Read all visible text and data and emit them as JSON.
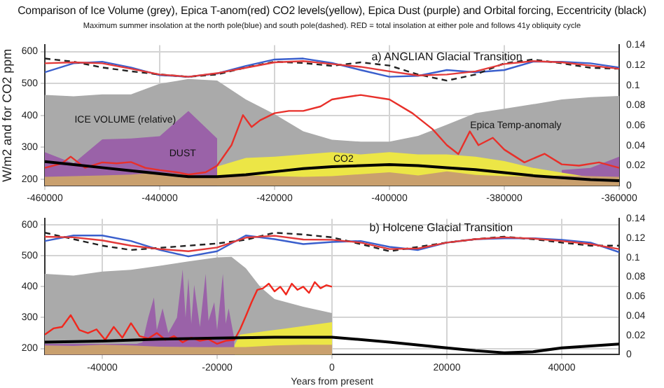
{
  "chart_data": [
    {
      "type": "line",
      "title": "Comparison of Ice Volume (grey), Epica T-anom(red) CO2 levels(yellow), Epica Dust (purple) and Orbital forcing, Eccentricity (black)",
      "subtitle": "Maximum summer insolation at the north pole(blue) and south pole(dashed). RED = total insolation at either pole and follows 41y obliquity cycle",
      "ylabel": "W/m2 and for CO2 ppm",
      "annotations": [
        "a) ANGLIAN Glacial Transition"
      ],
      "grid": true,
      "marker": "none",
      "xlim": [
        -460000,
        -360000
      ],
      "xticks": [
        -460000,
        -440000,
        -420000,
        -400000,
        -380000,
        -360000
      ],
      "ylim": [
        180,
        620
      ],
      "yticks": [
        200,
        300,
        400,
        500,
        600
      ],
      "y2lim": [
        0,
        0.14
      ],
      "y2ticks": [
        0,
        0.02,
        0.04,
        0.06,
        0.08,
        0.1,
        0.12,
        0.14
      ],
      "x": [
        -460000,
        -455000,
        -450000,
        -445000,
        -440000,
        -435000,
        -430000,
        -425000,
        -420000,
        -415000,
        -410000,
        -405000,
        -400000,
        -395000,
        -390000,
        -385000,
        -380000,
        -375000,
        -370000,
        -365000,
        -360000
      ],
      "series": [
        {
          "type": "area",
          "name": "ICE VOLUME (relative)",
          "color": "#aaaaaa",
          "values": [
            464,
            460,
            466,
            466,
            499,
            514,
            509,
            450,
            404,
            350,
            324,
            318,
            318,
            336,
            371,
            407,
            421,
            435,
            450,
            457,
            461
          ]
        },
        {
          "type": "area",
          "name": "DUST",
          "color": "#9a62a8",
          "values": [
            285,
            250,
            325,
            328,
            335,
            414,
            328,
            null,
            null,
            null,
            null,
            null,
            null,
            null,
            null,
            null,
            null,
            null,
            229,
            236,
            271
          ]
        },
        {
          "type": "area",
          "name": "CO2",
          "color": "#ece646",
          "values": [
            null,
            null,
            null,
            null,
            null,
            null,
            240,
            267,
            271,
            278,
            285,
            278,
            285,
            278,
            278,
            271,
            257,
            236,
            221,
            207,
            200
          ]
        },
        {
          "type": "area",
          "color": "#c9a06e",
          "values": [
            208,
            210,
            212,
            215,
            222,
            214,
            210,
            212,
            210,
            208,
            210,
            216,
            222,
            212,
            225,
            214,
            210,
            208,
            212,
            210,
            208
          ]
        },
        {
          "type": "line",
          "name": "Epica Temp-anomaly",
          "color": "#e8302a",
          "x": [
            -460000,
            -457000,
            -455500,
            -453000,
            -450000,
            -447500,
            -445000,
            -442500,
            -440000,
            -437000,
            -435000,
            -432000,
            -430000,
            -427500,
            -425500,
            -424000,
            -422500,
            -420000,
            -417500,
            -415000,
            -412000,
            -410000,
            -408000,
            -405000,
            -400000,
            -396000,
            -392500,
            -390000,
            -388000,
            -386000,
            -384500,
            -382000,
            -380000,
            -376500,
            -373000,
            -370000,
            -367000,
            -363500,
            -360000
          ],
          "values": [
            236,
            250,
            271,
            236,
            253,
            250,
            254,
            236,
            229,
            222,
            215,
            222,
            243,
            307,
            401,
            364,
            385,
            407,
            414,
            414,
            428,
            450,
            456,
            464,
            450,
            407,
            357,
            307,
            279,
            350,
            307,
            330,
            293,
            253,
            280,
            247,
            243,
            253,
            236
          ]
        },
        {
          "type": "line",
          "axis": "y2",
          "color": "#000000",
          "values": [
            0.024,
            0.021,
            0.018,
            0.015,
            0.012,
            0.009,
            0.009,
            0.011,
            0.014,
            0.017,
            0.019,
            0.02,
            0.021,
            0.02,
            0.018,
            0.016,
            0.013,
            0.01,
            0.008,
            0.006,
            0.005
          ]
        },
        {
          "type": "line",
          "color": "#3a5fcd",
          "values": [
            535,
            563,
            568,
            550,
            526,
            521,
            531,
            555,
            575,
            578,
            564,
            542,
            521,
            524,
            542,
            535,
            542,
            568,
            568,
            563,
            550
          ]
        },
        {
          "type": "line",
          "color": "#222222",
          "line_style": "dashed",
          "values": [
            578,
            568,
            550,
            538,
            528,
            521,
            528,
            550,
            568,
            564,
            555,
            566,
            556,
            528,
            509,
            528,
            563,
            575,
            563,
            549,
            546
          ]
        },
        {
          "type": "line",
          "color": "#e23a3a",
          "values": [
            563,
            566,
            563,
            546,
            528,
            521,
            532,
            549,
            566,
            570,
            561,
            552,
            538,
            525,
            528,
            538,
            561,
            570,
            566,
            556,
            546
          ]
        }
      ]
    },
    {
      "type": "line",
      "xlabel": "Years from present",
      "annotations": [
        "b) Holcene Glacial Transition"
      ],
      "grid": true,
      "marker": "none",
      "xlim": [
        -50000,
        50000
      ],
      "xticks": [
        -40000,
        -20000,
        0,
        20000,
        40000
      ],
      "ylim": [
        180,
        620
      ],
      "yticks": [
        200,
        300,
        400,
        500,
        600
      ],
      "y2lim": [
        0,
        0.14
      ],
      "y2ticks": [
        0,
        0.02,
        0.04,
        0.06,
        0.08,
        0.1,
        0.12,
        0.14
      ],
      "x": [
        -50000,
        -45000,
        -40000,
        -35000,
        -30000,
        -25000,
        -20000,
        -15000,
        -10000,
        -5000,
        0,
        5000,
        10000,
        15000,
        20000,
        25000,
        30000,
        35000,
        40000,
        45000,
        50000
      ],
      "series": [
        {
          "type": "area",
          "color": "#aaaaaa",
          "x": [
            -50000,
            -45000,
            -40000,
            -35000,
            -30000,
            -25000,
            -20000,
            -17500,
            -15000,
            -12500,
            -10000,
            -5000,
            0
          ],
          "values": [
            442,
            436,
            449,
            455,
            468,
            482,
            495,
            497,
            460,
            400,
            360,
            335,
            315
          ]
        },
        {
          "type": "area",
          "color": "#9a62a8",
          "x": [
            -50000,
            -40000,
            -34000,
            -33000,
            -32000,
            -31000,
            -30500,
            -29500,
            -28500,
            -27000,
            -26000,
            -25500,
            -25000,
            -24500,
            -24000,
            -23000,
            -22000,
            -21500,
            -20500,
            -20000,
            -19000,
            -18500,
            -18000,
            -17000
          ],
          "values": [
            215,
            215,
            215,
            220,
            300,
            365,
            260,
            330,
            250,
            300,
            456,
            300,
            428,
            280,
            406,
            270,
            442,
            290,
            350,
            260,
            442,
            280,
            330,
            230
          ]
        },
        {
          "type": "area",
          "color": "#ece646",
          "x": [
            -17000,
            -16000,
            -12000,
            -8000,
            -4000,
            0
          ],
          "values": [
            210,
            245,
            255,
            265,
            275,
            285
          ]
        },
        {
          "type": "area",
          "color": "#c9a06e",
          "x": [
            -50000,
            -45000,
            -40000,
            -35000,
            -30000,
            -25000,
            -20000,
            -15000,
            -10000,
            -5000,
            0
          ],
          "values": [
            210,
            208,
            212,
            210,
            206,
            205,
            204,
            205,
            210,
            212,
            212
          ]
        },
        {
          "type": "line",
          "color": "#f0281e",
          "x": [
            -50000,
            -48500,
            -47000,
            -45500,
            -44000,
            -42500,
            -41000,
            -39500,
            -38000,
            -36500,
            -35000,
            -33500,
            -32000,
            -30500,
            -29000,
            -27500,
            -26000,
            -24500,
            -23000,
            -21500,
            -20000,
            -18500,
            -17000,
            -16000,
            -15000,
            -14000,
            -13000,
            -12000,
            -11000,
            -10000,
            -9000,
            -8000,
            -7000,
            -6000,
            -5000,
            -4000,
            -3000,
            -2000,
            -1000,
            0
          ],
          "values": [
            245,
            265,
            270,
            308,
            260,
            250,
            262,
            228,
            270,
            235,
            282,
            240,
            232,
            250,
            228,
            240,
            220,
            235,
            225,
            230,
            215,
            225,
            228,
            262,
            305,
            350,
            390,
            395,
            410,
            385,
            400,
            375,
            410,
            390,
            400,
            380,
            415,
            395,
            405,
            400
          ]
        },
        {
          "type": "line",
          "axis": "y2",
          "color": "#000000",
          "x": [
            -50000,
            -40000,
            -30000,
            -20000,
            -10000,
            0,
            10000,
            20000,
            25000,
            30000,
            35000,
            40000,
            45000,
            50000
          ],
          "values": [
            0.013,
            0.014,
            0.016,
            0.017,
            0.018,
            0.018,
            0.013,
            0.007,
            0.004,
            0.002,
            0.003,
            0.007,
            0.009,
            0.011
          ]
        },
        {
          "type": "line",
          "color": "#3a5fcd",
          "values": [
            548,
            566,
            566,
            548,
            519,
            498,
            515,
            566,
            554,
            538,
            545,
            548,
            529,
            519,
            543,
            554,
            557,
            557,
            552,
            543,
            512
          ]
        },
        {
          "type": "line",
          "color": "#222222",
          "line_style": "dashed",
          "values": [
            575,
            554,
            533,
            519,
            526,
            533,
            540,
            552,
            575,
            569,
            560,
            538,
            515,
            529,
            543,
            554,
            562,
            554,
            543,
            533,
            533
          ]
        },
        {
          "type": "line",
          "color": "#e23a3a",
          "values": [
            562,
            560,
            550,
            533,
            522,
            515,
            527,
            559,
            565,
            553,
            552,
            543,
            522,
            524,
            543,
            554,
            560,
            556,
            548,
            538,
            522
          ]
        }
      ]
    }
  ]
}
